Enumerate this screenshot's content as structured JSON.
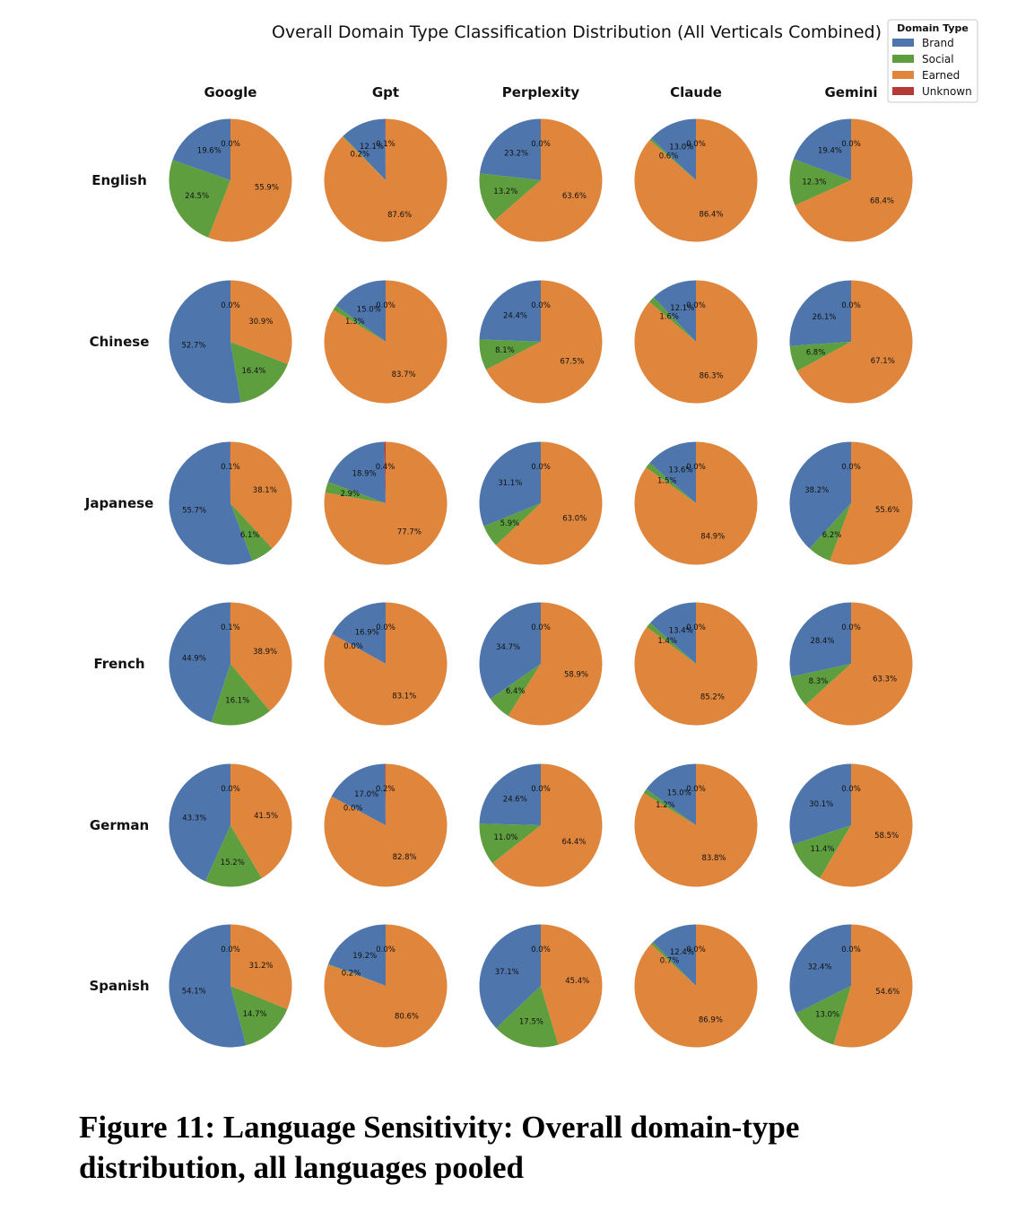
{
  "chart_data": {
    "type": "pie",
    "title": "Overall Domain Type Classification Distribution (All Verticals Combined)",
    "legend": {
      "title": "Domain Type",
      "placement": "top-right",
      "entries": [
        "Brand",
        "Social",
        "Earned",
        "Unknown"
      ]
    },
    "colors": {
      "Brand": "#4e76ad",
      "Social": "#5e9e3f",
      "Earned": "#df853c",
      "Unknown": "#b53a35"
    },
    "columns": [
      "Google",
      "Gpt",
      "Perplexity",
      "Claude",
      "Gemini"
    ],
    "rows": [
      "English",
      "Chinese",
      "Japanese",
      "French",
      "German",
      "Spanish"
    ],
    "category_order": [
      "Unknown",
      "Brand",
      "Social",
      "Earned"
    ],
    "values": [
      [
        {
          "Unknown": 0.0,
          "Brand": 19.6,
          "Social": 24.5,
          "Earned": 55.9
        },
        {
          "Unknown": 0.1,
          "Brand": 12.1,
          "Social": 0.2,
          "Earned": 87.6
        },
        {
          "Unknown": 0.0,
          "Brand": 23.2,
          "Social": 13.2,
          "Earned": 63.6
        },
        {
          "Unknown": 0.0,
          "Brand": 13.0,
          "Social": 0.6,
          "Earned": 86.4
        },
        {
          "Unknown": 0.0,
          "Brand": 19.4,
          "Social": 12.3,
          "Earned": 68.4
        }
      ],
      [
        {
          "Unknown": 0.0,
          "Brand": 52.7,
          "Social": 16.4,
          "Earned": 30.9
        },
        {
          "Unknown": 0.0,
          "Brand": 15.0,
          "Social": 1.3,
          "Earned": 83.7
        },
        {
          "Unknown": 0.0,
          "Brand": 24.4,
          "Social": 8.1,
          "Earned": 67.5
        },
        {
          "Unknown": 0.0,
          "Brand": 12.1,
          "Social": 1.6,
          "Earned": 86.3
        },
        {
          "Unknown": 0.0,
          "Brand": 26.1,
          "Social": 6.8,
          "Earned": 67.1
        }
      ],
      [
        {
          "Unknown": 0.1,
          "Brand": 55.7,
          "Social": 6.1,
          "Earned": 38.1
        },
        {
          "Unknown": 0.4,
          "Brand": 18.9,
          "Social": 2.9,
          "Earned": 77.7
        },
        {
          "Unknown": 0.0,
          "Brand": 31.1,
          "Social": 5.9,
          "Earned": 63.0
        },
        {
          "Unknown": 0.0,
          "Brand": 13.6,
          "Social": 1.5,
          "Earned": 84.9
        },
        {
          "Unknown": 0.0,
          "Brand": 38.2,
          "Social": 6.2,
          "Earned": 55.6
        }
      ],
      [
        {
          "Unknown": 0.1,
          "Brand": 44.9,
          "Social": 16.1,
          "Earned": 38.9
        },
        {
          "Unknown": 0.0,
          "Brand": 16.9,
          "Social": 0.0,
          "Earned": 83.1
        },
        {
          "Unknown": 0.0,
          "Brand": 34.7,
          "Social": 6.4,
          "Earned": 58.9
        },
        {
          "Unknown": 0.0,
          "Brand": 13.4,
          "Social": 1.4,
          "Earned": 85.2
        },
        {
          "Unknown": 0.0,
          "Brand": 28.4,
          "Social": 8.3,
          "Earned": 63.3
        }
      ],
      [
        {
          "Unknown": 0.0,
          "Brand": 43.3,
          "Social": 15.2,
          "Earned": 41.5
        },
        {
          "Unknown": 0.2,
          "Brand": 17.0,
          "Social": 0.0,
          "Earned": 82.8
        },
        {
          "Unknown": 0.0,
          "Brand": 24.6,
          "Social": 11.0,
          "Earned": 64.4
        },
        {
          "Unknown": 0.0,
          "Brand": 15.0,
          "Social": 1.2,
          "Earned": 83.8
        },
        {
          "Unknown": 0.0,
          "Brand": 30.1,
          "Social": 11.4,
          "Earned": 58.5
        }
      ],
      [
        {
          "Unknown": 0.0,
          "Brand": 54.1,
          "Social": 14.7,
          "Earned": 31.2
        },
        {
          "Unknown": 0.0,
          "Brand": 19.2,
          "Social": 0.2,
          "Earned": 80.6
        },
        {
          "Unknown": 0.0,
          "Brand": 37.1,
          "Social": 17.5,
          "Earned": 45.4
        },
        {
          "Unknown": 0.0,
          "Brand": 12.4,
          "Social": 0.7,
          "Earned": 86.9
        },
        {
          "Unknown": 0.0,
          "Brand": 32.4,
          "Social": 13.0,
          "Earned": 54.6
        }
      ]
    ]
  },
  "caption": "Figure 11: Language Sensitivity: Overall domain-type distribution, all languages pooled"
}
